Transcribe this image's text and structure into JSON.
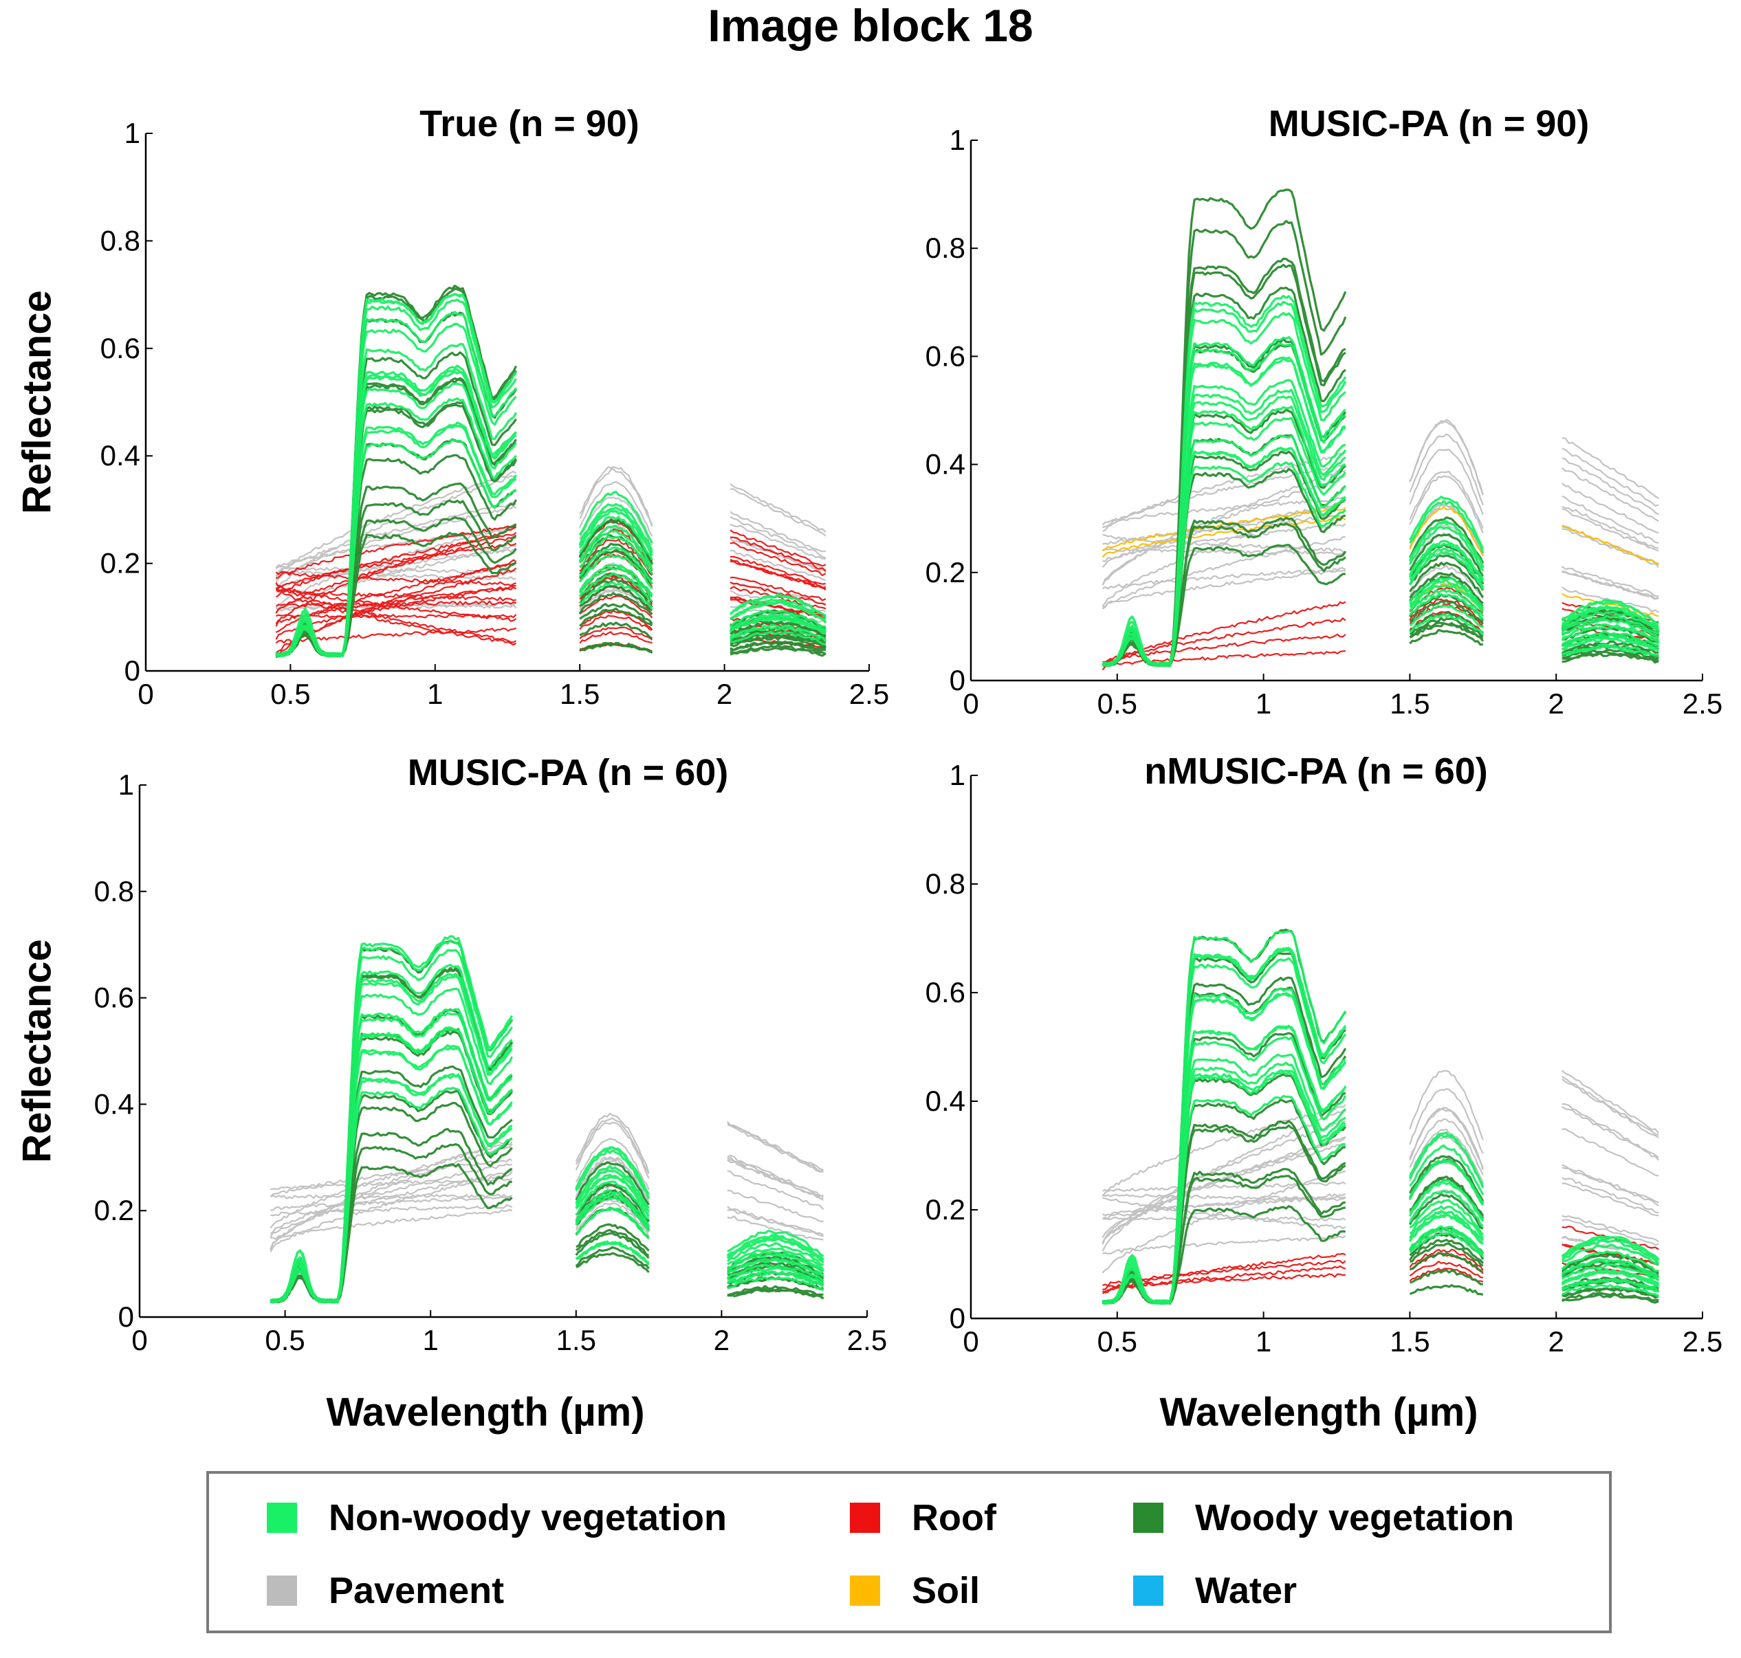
{
  "figure": {
    "title": "Image block 18",
    "ylabel": "Reflectance",
    "xlabel": "Wavelength (µm)"
  },
  "legend": {
    "entries": [
      {
        "label": "Non-woody vegetation",
        "color": "#19f065"
      },
      {
        "label": "Roof",
        "color": "#ee1111"
      },
      {
        "label": "Woody vegetation",
        "color": "#2a8a30"
      },
      {
        "label": "Pavement",
        "color": "#bcbcbc"
      },
      {
        "label": "Soil",
        "color": "#ffbb00"
      },
      {
        "label": "Water",
        "color": "#15b4ee"
      }
    ]
  },
  "chart_data": [
    {
      "type": "line",
      "title": "True (n = 90)",
      "xlabel": "",
      "ylabel": "Reflectance",
      "xlim": [
        0,
        2.5
      ],
      "ylim": [
        0,
        1
      ],
      "xticks": [
        "0",
        "0.5",
        "1",
        "1.5",
        "2",
        "2.5"
      ],
      "yticks": [
        "0",
        "0.2",
        "0.4",
        "0.6",
        "0.8",
        "1"
      ],
      "band_ranges": [
        [
          0.45,
          1.28
        ],
        [
          1.5,
          1.75
        ],
        [
          2.02,
          2.35
        ]
      ],
      "series": [
        {
          "name": "Non-woody vegetation",
          "color": "#19f065",
          "count": 14,
          "vis_peak": 0.08,
          "nir_range": [
            0.42,
            0.7
          ],
          "swir1_range": [
            0.16,
            0.34
          ],
          "swir2_range": [
            0.07,
            0.14
          ]
        },
        {
          "name": "Woody vegetation",
          "color": "#2a8a30",
          "count": 14,
          "vis_peak": 0.06,
          "nir_range": [
            0.25,
            0.7
          ],
          "swir1_range": [
            0.05,
            0.28
          ],
          "swir2_range": [
            0.04,
            0.11
          ]
        },
        {
          "name": "Roof",
          "color": "#ee1111",
          "count": 18,
          "vis_level_range": [
            0.02,
            0.2
          ],
          "nir_range": [
            0.05,
            0.28
          ],
          "swir1_range": [
            0.05,
            0.28
          ],
          "swir2_range": [
            0.06,
            0.26
          ]
        },
        {
          "name": "Pavement",
          "color": "#bcbcbc",
          "count": 12,
          "vis_level_range": [
            0.1,
            0.22
          ],
          "nir_range": [
            0.12,
            0.37
          ],
          "swir1_range": [
            0.15,
            0.38
          ],
          "swir2_range": [
            0.12,
            0.35
          ]
        }
      ]
    },
    {
      "type": "line",
      "title": "MUSIC-PA (n = 90)",
      "xlabel": "",
      "ylabel": "",
      "xlim": [
        0,
        2.5
      ],
      "ylim": [
        0,
        1
      ],
      "xticks": [
        "0",
        "0.5",
        "1",
        "1.5",
        "2",
        "2.5"
      ],
      "yticks": [
        "0",
        "0.2",
        "0.4",
        "0.6",
        "0.8",
        "1"
      ],
      "band_ranges": [
        [
          0.45,
          1.28
        ],
        [
          1.5,
          1.75
        ],
        [
          2.02,
          2.35
        ]
      ],
      "series": [
        {
          "name": "Non-woody vegetation",
          "color": "#19f065",
          "count": 16,
          "vis_peak": 0.08,
          "nir_range": [
            0.38,
            0.7
          ],
          "swir1_range": [
            0.12,
            0.34
          ],
          "swir2_range": [
            0.06,
            0.15
          ]
        },
        {
          "name": "Woody vegetation",
          "color": "#2a8a30",
          "count": 14,
          "vis_peak": 0.06,
          "nir_range": [
            0.22,
            0.89
          ],
          "swir1_range": [
            0.08,
            0.3
          ],
          "swir2_range": [
            0.04,
            0.13
          ]
        },
        {
          "name": "Roof",
          "color": "#ee1111",
          "count": 4,
          "vis_level_range": [
            0.02,
            0.04
          ],
          "nir_range": [
            0.05,
            0.15
          ],
          "swir1_range": [
            0.12,
            0.17
          ],
          "swir2_range": [
            0.1,
            0.15
          ]
        },
        {
          "name": "Soil",
          "color": "#ffbb00",
          "count": 2,
          "vis_level_range": [
            0.2,
            0.24
          ],
          "nir_range": [
            0.3,
            0.32
          ],
          "swir1_range": [
            0.15,
            0.32
          ],
          "swir2_range": [
            0.14,
            0.29
          ]
        },
        {
          "name": "Pavement",
          "color": "#bcbcbc",
          "count": 14,
          "vis_level_range": [
            0.1,
            0.32
          ],
          "nir_range": [
            0.2,
            0.42
          ],
          "swir1_range": [
            0.18,
            0.48
          ],
          "swir2_range": [
            0.17,
            0.45
          ]
        }
      ]
    },
    {
      "type": "line",
      "title": "MUSIC-PA (n = 60)",
      "xlabel": "Wavelength (µm)",
      "ylabel": "Reflectance",
      "xlim": [
        0,
        2.5
      ],
      "ylim": [
        0,
        1
      ],
      "xticks": [
        "0",
        "0.5",
        "1",
        "1.5",
        "2",
        "2.5"
      ],
      "yticks": [
        "0",
        "0.2",
        "0.4",
        "0.6",
        "0.8",
        "1"
      ],
      "band_ranges": [
        [
          0.45,
          1.28
        ],
        [
          1.5,
          1.75
        ],
        [
          2.02,
          2.35
        ]
      ],
      "series": [
        {
          "name": "Non-woody vegetation",
          "color": "#19f065",
          "count": 16,
          "vis_peak": 0.09,
          "nir_range": [
            0.42,
            0.71
          ],
          "swir1_range": [
            0.14,
            0.35
          ],
          "swir2_range": [
            0.07,
            0.16
          ]
        },
        {
          "name": "Woody vegetation",
          "color": "#2a8a30",
          "count": 12,
          "vis_peak": 0.07,
          "nir_range": [
            0.28,
            0.7
          ],
          "swir1_range": [
            0.12,
            0.3
          ],
          "swir2_range": [
            0.05,
            0.12
          ]
        },
        {
          "name": "Pavement",
          "color": "#bcbcbc",
          "count": 12,
          "vis_level_range": [
            0.12,
            0.26
          ],
          "nir_range": [
            0.2,
            0.34
          ],
          "swir1_range": [
            0.2,
            0.38
          ],
          "swir2_range": [
            0.19,
            0.38
          ]
        }
      ]
    },
    {
      "type": "line",
      "title": "nMUSIC-PA (n = 60)",
      "xlabel": "Wavelength (µm)",
      "ylabel": "",
      "xlim": [
        0,
        2.5
      ],
      "ylim": [
        0,
        1
      ],
      "xticks": [
        "0",
        "0.5",
        "1",
        "1.5",
        "2",
        "2.5"
      ],
      "yticks": [
        "0",
        "0.2",
        "0.4",
        "0.6",
        "0.8",
        "1"
      ],
      "band_ranges": [
        [
          0.45,
          1.28
        ],
        [
          1.5,
          1.75
        ],
        [
          2.02,
          2.35
        ]
      ],
      "series": [
        {
          "name": "Non-woody vegetation",
          "color": "#19f065",
          "count": 16,
          "vis_peak": 0.08,
          "nir_range": [
            0.4,
            0.71
          ],
          "swir1_range": [
            0.14,
            0.34
          ],
          "swir2_range": [
            0.06,
            0.15
          ]
        },
        {
          "name": "Woody vegetation",
          "color": "#2a8a30",
          "count": 12,
          "vis_peak": 0.06,
          "nir_range": [
            0.2,
            0.7
          ],
          "swir1_range": [
            0.06,
            0.3
          ],
          "swir2_range": [
            0.04,
            0.12
          ]
        },
        {
          "name": "Roof",
          "color": "#ee1111",
          "count": 4,
          "vis_level_range": [
            0.04,
            0.06
          ],
          "nir_range": [
            0.08,
            0.12
          ],
          "swir1_range": [
            0.09,
            0.13
          ],
          "swir2_range": [
            0.1,
            0.17
          ]
        },
        {
          "name": "Pavement",
          "color": "#bcbcbc",
          "count": 14,
          "vis_level_range": [
            0.08,
            0.28
          ],
          "nir_range": [
            0.15,
            0.4
          ],
          "swir1_range": [
            0.15,
            0.48
          ],
          "swir2_range": [
            0.15,
            0.46
          ]
        }
      ]
    }
  ]
}
